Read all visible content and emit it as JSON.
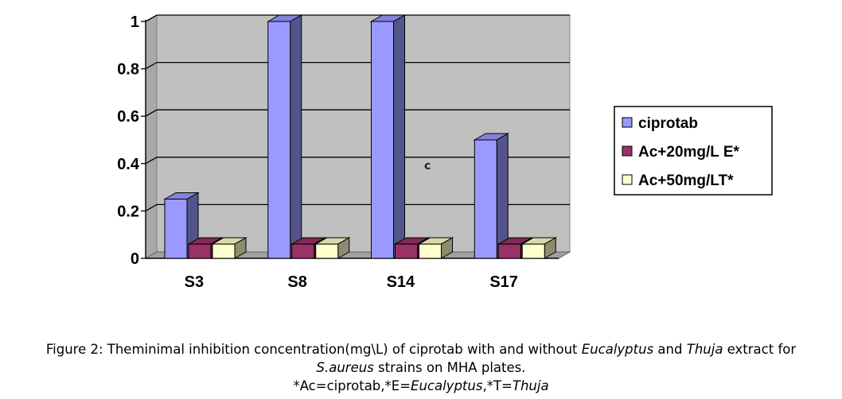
{
  "chart_data": {
    "type": "bar",
    "categories": [
      "S3",
      "S8",
      "S14",
      "S17"
    ],
    "series": [
      {
        "name": "ciprotab",
        "values": [
          0.25,
          1.0,
          1.0,
          0.5
        ],
        "color": "#9999ff"
      },
      {
        "name": "Ac+20mg/L E*",
        "values": [
          0.06,
          0.06,
          0.06,
          0.06
        ],
        "color": "#993366"
      },
      {
        "name": "Ac+50mg/LT*",
        "values": [
          0.06,
          0.06,
          0.06,
          0.06
        ],
        "color": "#ffffcc"
      }
    ],
    "ylim": [
      0,
      1
    ],
    "yticks": [
      "0",
      "0.2",
      "0.4",
      "0.6",
      "0.8",
      "1"
    ],
    "grid": true,
    "legend_position": "right",
    "annotation": "c",
    "wall_color": "#c0c0c0",
    "title": "",
    "xlabel": "",
    "ylabel": ""
  },
  "caption": {
    "line1_a": "Figure 2: Theminimal inhibition concentration(mg\\L) of ciprotab with and without ",
    "line1_b": "Eucalyptus",
    "line1_c": " and ",
    "line1_d": "Thuja",
    "line1_e": " extract for",
    "line2_a": "S.aureus",
    "line2_b": " strains on MHA plates.",
    "line3_a": "*Ac=ciprotab,*E=",
    "line3_b": "Eucalyptus",
    "line3_c": ",*T=",
    "line3_d": "Thuja"
  }
}
